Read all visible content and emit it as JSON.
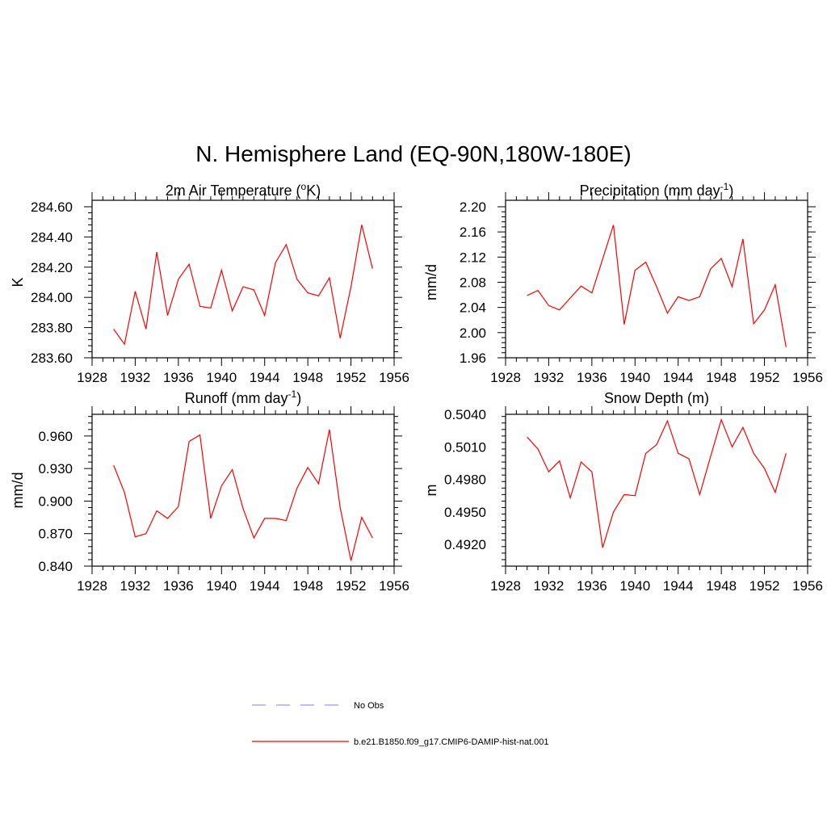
{
  "title": "N. Hemisphere Land (EQ-90N,180W-180E)",
  "colors": {
    "model": "#ff0000",
    "obs": "#9999ee"
  },
  "legend": [
    {
      "label": "No Obs",
      "style": "dashed",
      "color": "#9999ee"
    },
    {
      "label": "b.e21.B1850.f09_g17.CMIP6-DAMIP-hist-nat.001",
      "style": "solid",
      "color": "#ff0000"
    }
  ],
  "chart_data": [
    {
      "type": "line",
      "title": "2m Air Temperature (",
      "title_sup": "o",
      "title_end": "K)",
      "ylabel": "K",
      "xlim": [
        1928,
        1956
      ],
      "ylim": [
        283.6,
        284.6
      ],
      "xticks": [
        1928,
        1932,
        1936,
        1940,
        1944,
        1948,
        1952,
        1956
      ],
      "yticks": [
        283.6,
        283.8,
        284.0,
        284.2,
        284.4,
        284.6
      ],
      "ytick_labels": [
        "283.60",
        "283.80",
        "284.00",
        "284.20",
        "284.40",
        "284.60"
      ],
      "x": [
        1930,
        1931,
        1932,
        1933,
        1934,
        1935,
        1936,
        1937,
        1938,
        1939,
        1940,
        1941,
        1942,
        1943,
        1944,
        1945,
        1946,
        1947,
        1948,
        1949,
        1950,
        1951,
        1952,
        1953,
        1954
      ],
      "series": [
        {
          "name": "b.e21.B1850.f09_g17.CMIP6-DAMIP-hist-nat.001",
          "values": [
            283.79,
            283.69,
            284.04,
            283.79,
            284.3,
            283.88,
            284.12,
            284.22,
            283.94,
            283.93,
            284.18,
            283.91,
            284.07,
            284.05,
            283.88,
            284.23,
            284.35,
            284.12,
            284.03,
            284.01,
            284.13,
            283.73,
            284.07,
            284.48,
            284.19
          ]
        }
      ]
    },
    {
      "type": "line",
      "title": "Precipitation (mm day",
      "title_sup": "-1",
      "title_end": ")",
      "ylabel": "mm/d",
      "xlim": [
        1928,
        1956
      ],
      "ylim": [
        1.96,
        2.2
      ],
      "xticks": [
        1928,
        1932,
        1936,
        1940,
        1944,
        1948,
        1952,
        1956
      ],
      "yticks": [
        1.96,
        2.0,
        2.04,
        2.08,
        2.12,
        2.16,
        2.2
      ],
      "ytick_labels": [
        "1.96",
        "2.00",
        "2.04",
        "2.08",
        "2.12",
        "2.16",
        "2.20"
      ],
      "x": [
        1930,
        1931,
        1932,
        1933,
        1934,
        1935,
        1936,
        1937,
        1938,
        1939,
        1940,
        1941,
        1942,
        1943,
        1944,
        1945,
        1946,
        1947,
        1948,
        1949,
        1950,
        1951,
        1952,
        1953,
        1954
      ],
      "series": [
        {
          "name": "b.e21.B1850.f09_g17.CMIP6-DAMIP-hist-nat.001",
          "values": [
            2.059,
            2.067,
            2.043,
            2.036,
            2.055,
            2.074,
            2.063,
            2.117,
            2.171,
            2.013,
            2.099,
            2.112,
            2.073,
            2.031,
            2.057,
            2.051,
            2.057,
            2.101,
            2.118,
            2.073,
            2.149,
            2.014,
            2.036,
            2.076,
            1.977
          ]
        }
      ]
    },
    {
      "type": "line",
      "title": "Runoff (mm day",
      "title_sup": "-1",
      "title_end": ")",
      "ylabel": "mm/d",
      "xlim": [
        1928,
        1956
      ],
      "ylim": [
        0.84,
        0.98
      ],
      "xticks": [
        1928,
        1932,
        1936,
        1940,
        1944,
        1948,
        1952,
        1956
      ],
      "yticks": [
        0.84,
        0.87,
        0.9,
        0.93,
        0.96
      ],
      "ytick_labels": [
        "0.840",
        "0.870",
        "0.900",
        "0.930",
        "0.960"
      ],
      "x": [
        1930,
        1931,
        1932,
        1933,
        1934,
        1935,
        1936,
        1937,
        1938,
        1939,
        1940,
        1941,
        1942,
        1943,
        1944,
        1945,
        1946,
        1947,
        1948,
        1949,
        1950,
        1951,
        1952,
        1953,
        1954
      ],
      "series": [
        {
          "name": "b.e21.B1850.f09_g17.CMIP6-DAMIP-hist-nat.001",
          "values": [
            0.933,
            0.908,
            0.867,
            0.87,
            0.891,
            0.884,
            0.895,
            0.955,
            0.961,
            0.884,
            0.914,
            0.929,
            0.893,
            0.866,
            0.884,
            0.884,
            0.882,
            0.912,
            0.931,
            0.916,
            0.966,
            0.894,
            0.845,
            0.885,
            0.866
          ]
        }
      ]
    },
    {
      "type": "line",
      "title": "Snow Depth (m)",
      "title_sup": "",
      "title_end": "",
      "ylabel": "m",
      "xlim": [
        1928,
        1956
      ],
      "ylim": [
        0.49,
        0.504
      ],
      "xticks": [
        1928,
        1932,
        1936,
        1940,
        1944,
        1948,
        1952,
        1956
      ],
      "yticks": [
        0.492,
        0.495,
        0.498,
        0.501,
        0.504
      ],
      "ytick_labels": [
        "0.4920",
        "0.4950",
        "0.4980",
        "0.5010",
        "0.5040"
      ],
      "x": [
        1930,
        1931,
        1932,
        1933,
        1934,
        1935,
        1936,
        1937,
        1938,
        1939,
        1940,
        1941,
        1942,
        1943,
        1944,
        1945,
        1946,
        1947,
        1948,
        1949,
        1950,
        1951,
        1952,
        1953,
        1954
      ],
      "series": [
        {
          "name": "b.e21.B1850.f09_g17.CMIP6-DAMIP-hist-nat.001",
          "values": [
            0.5019,
            0.5008,
            0.4987,
            0.4997,
            0.4963,
            0.4996,
            0.4987,
            0.4917,
            0.495,
            0.4966,
            0.4965,
            0.5004,
            0.5012,
            0.5034,
            0.5004,
            0.4999,
            0.4966,
            0.5001,
            0.5035,
            0.501,
            0.5028,
            0.5004,
            0.499,
            0.4968,
            0.5004
          ]
        }
      ]
    }
  ]
}
